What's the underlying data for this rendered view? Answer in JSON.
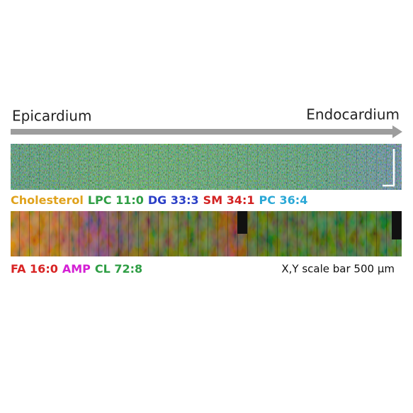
{
  "header": {
    "left_label": "Epicardium",
    "right_label": "Endocardium"
  },
  "panels": [
    {
      "legend": [
        {
          "label": "Cholesterol",
          "color": "#e0a21c"
        },
        {
          "label": "LPC 11:0",
          "color": "#2f9e45"
        },
        {
          "label": "DG 33:3",
          "color": "#2b3fc7"
        },
        {
          "label": "SM 34:1",
          "color": "#d32222"
        },
        {
          "label": "PC 36:4",
          "color": "#2ba8d6"
        }
      ]
    },
    {
      "legend": [
        {
          "label": "FA 16:0",
          "color": "#d82424"
        },
        {
          "label": "AMP",
          "color": "#d41fd4"
        },
        {
          "label": "CL 72:8",
          "color": "#2f9e45"
        }
      ]
    }
  ],
  "scale_note": "X,Y scale bar 500 µm"
}
